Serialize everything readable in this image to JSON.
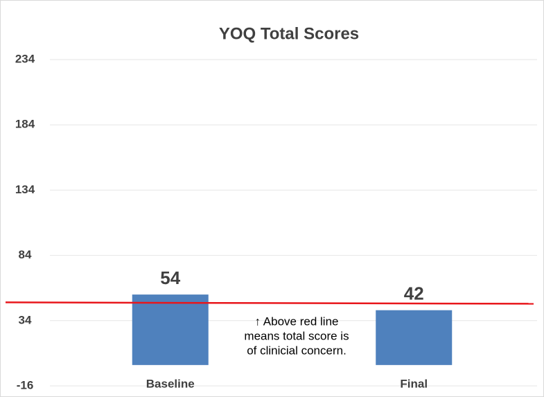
{
  "chart_data": {
    "type": "bar",
    "title": "YOQ Total Scores",
    "categories": [
      "Baseline",
      "Final"
    ],
    "values": [
      54,
      42
    ],
    "color": "#4f81bd",
    "ylim": [
      -16,
      234
    ],
    "yticks": [
      -16,
      34,
      84,
      134,
      184,
      234
    ],
    "grid": true,
    "reference_line": {
      "value": 48,
      "color": "#e8161b"
    },
    "annotation": [
      "↑ Above red line",
      "means total score is",
      "of clinicial concern."
    ]
  }
}
